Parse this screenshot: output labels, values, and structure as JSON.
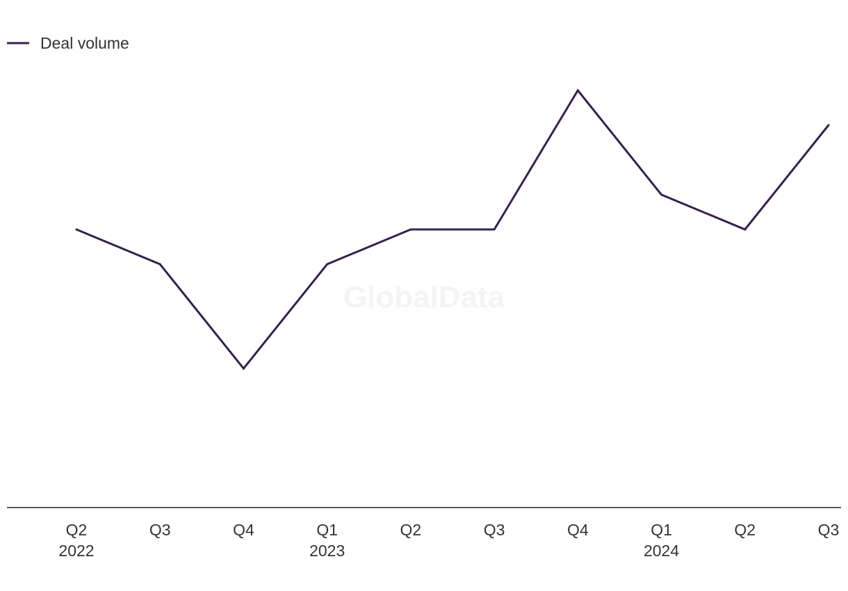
{
  "watermark": "GlobalData",
  "legend": {
    "label": "Deal volume"
  },
  "colors": {
    "series": "#35214f",
    "axis": "#222222",
    "text": "#333333"
  },
  "chart_data": {
    "type": "line",
    "title": "",
    "xlabel": "",
    "ylabel": "",
    "categories": [
      "Q2 2022",
      "Q3 2022",
      "Q4 2022",
      "Q1 2023",
      "Q2 2023",
      "Q3 2023",
      "Q4 2023",
      "Q1 2024",
      "Q2 2024",
      "Q3 2024"
    ],
    "tick_labels": [
      {
        "quarter": "Q2",
        "year": "2022"
      },
      {
        "quarter": "Q3",
        "year": ""
      },
      {
        "quarter": "Q4",
        "year": ""
      },
      {
        "quarter": "Q1",
        "year": "2023"
      },
      {
        "quarter": "Q2",
        "year": ""
      },
      {
        "quarter": "Q3",
        "year": ""
      },
      {
        "quarter": "Q4",
        "year": ""
      },
      {
        "quarter": "Q1",
        "year": "2024"
      },
      {
        "quarter": "Q2",
        "year": ""
      },
      {
        "quarter": "Q3",
        "year": ""
      }
    ],
    "series": [
      {
        "name": "Deal volume",
        "values": [
          8,
          7,
          4,
          7,
          8,
          8,
          12,
          9,
          8,
          11
        ]
      }
    ],
    "ylim": [
      -4,
      14
    ],
    "grid": false,
    "legend_position": "top-left"
  }
}
